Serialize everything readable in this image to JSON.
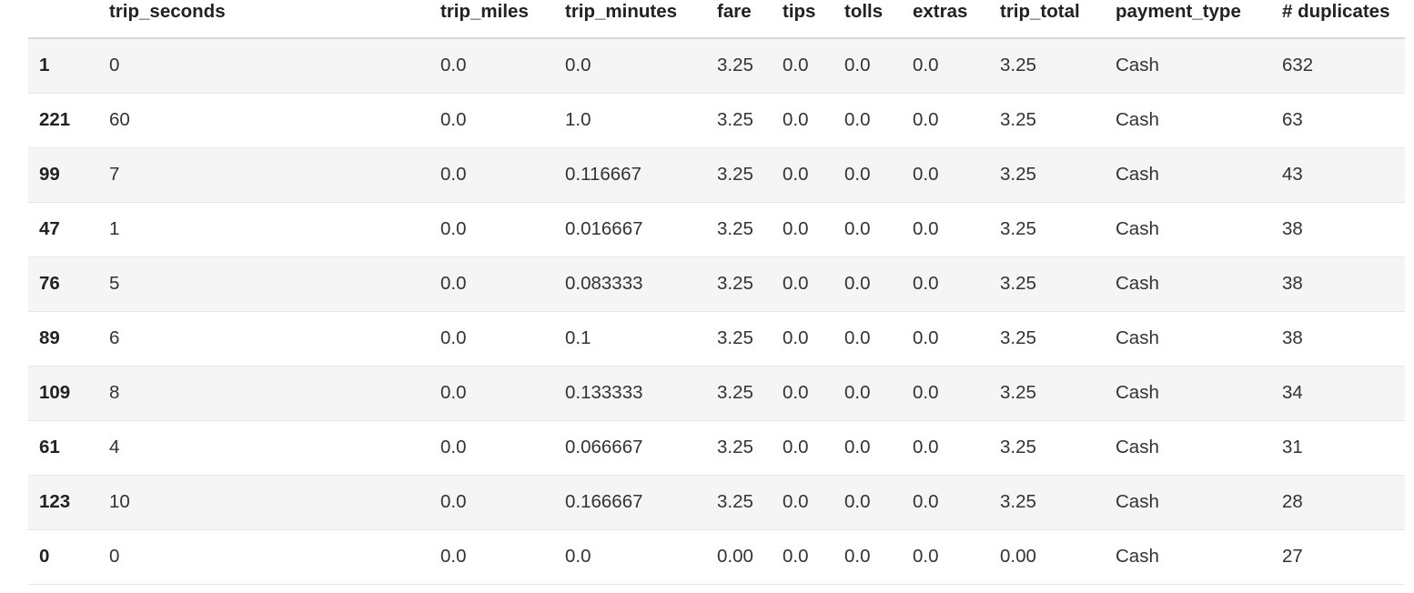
{
  "table": {
    "columns": [
      "",
      "trip_seconds",
      "trip_miles",
      "trip_minutes",
      "fare",
      "tips",
      "tolls",
      "extras",
      "trip_total",
      "payment_type",
      "# duplicates"
    ],
    "rows": [
      {
        "index": "1",
        "cells": [
          "0",
          "0.0",
          "0.0",
          "3.25",
          "0.0",
          "0.0",
          "0.0",
          "3.25",
          "Cash",
          "632"
        ]
      },
      {
        "index": "221",
        "cells": [
          "60",
          "0.0",
          "1.0",
          "3.25",
          "0.0",
          "0.0",
          "0.0",
          "3.25",
          "Cash",
          "63"
        ]
      },
      {
        "index": "99",
        "cells": [
          "7",
          "0.0",
          "0.116667",
          "3.25",
          "0.0",
          "0.0",
          "0.0",
          "3.25",
          "Cash",
          "43"
        ]
      },
      {
        "index": "47",
        "cells": [
          "1",
          "0.0",
          "0.016667",
          "3.25",
          "0.0",
          "0.0",
          "0.0",
          "3.25",
          "Cash",
          "38"
        ]
      },
      {
        "index": "76",
        "cells": [
          "5",
          "0.0",
          "0.083333",
          "3.25",
          "0.0",
          "0.0",
          "0.0",
          "3.25",
          "Cash",
          "38"
        ]
      },
      {
        "index": "89",
        "cells": [
          "6",
          "0.0",
          "0.1",
          "3.25",
          "0.0",
          "0.0",
          "0.0",
          "3.25",
          "Cash",
          "38"
        ]
      },
      {
        "index": "109",
        "cells": [
          "8",
          "0.0",
          "0.133333",
          "3.25",
          "0.0",
          "0.0",
          "0.0",
          "3.25",
          "Cash",
          "34"
        ]
      },
      {
        "index": "61",
        "cells": [
          "4",
          "0.0",
          "0.066667",
          "3.25",
          "0.0",
          "0.0",
          "0.0",
          "3.25",
          "Cash",
          "31"
        ]
      },
      {
        "index": "123",
        "cells": [
          "10",
          "0.0",
          "0.166667",
          "3.25",
          "0.0",
          "0.0",
          "0.0",
          "3.25",
          "Cash",
          "28"
        ]
      },
      {
        "index": "0",
        "cells": [
          "0",
          "0.0",
          "0.0",
          "0.00",
          "0.0",
          "0.0",
          "0.0",
          "0.00",
          "Cash",
          "27"
        ]
      }
    ]
  }
}
